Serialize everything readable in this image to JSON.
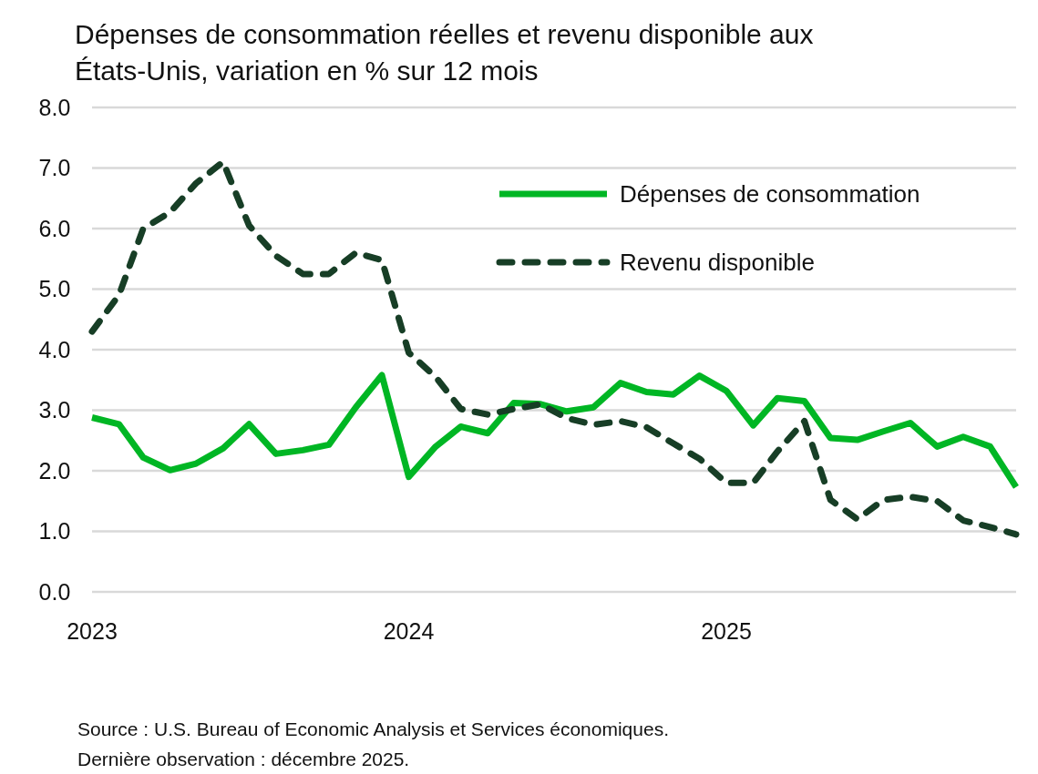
{
  "chart_data": {
    "type": "line",
    "title": "Dépenses de consommation réelles et revenu disponible aux États-Unis, variation en % sur 12 mois",
    "x": [
      "2023-01",
      "2023-02",
      "2023-03",
      "2023-04",
      "2023-05",
      "2023-06",
      "2023-07",
      "2023-08",
      "2023-09",
      "2023-10",
      "2023-11",
      "2023-12",
      "2024-01",
      "2024-02",
      "2024-03",
      "2024-04",
      "2024-05",
      "2024-06",
      "2024-07",
      "2024-08",
      "2024-09",
      "2024-10",
      "2024-11",
      "2024-12",
      "2025-01",
      "2025-02",
      "2025-03",
      "2025-04",
      "2025-05",
      "2025-06",
      "2025-07",
      "2025-08",
      "2025-09",
      "2025-10",
      "2025-11",
      "2025-12"
    ],
    "series": [
      {
        "name": "Dépenses de consommation",
        "color": "#00b624",
        "line_style": "solid",
        "values": [
          2.88,
          2.77,
          2.22,
          2.01,
          2.12,
          2.37,
          2.77,
          2.28,
          2.34,
          2.43,
          3.05,
          3.58,
          1.9,
          2.4,
          2.73,
          2.62,
          3.12,
          3.1,
          2.98,
          3.05,
          3.45,
          3.3,
          3.26,
          3.57,
          3.32,
          2.75,
          3.2,
          3.15,
          2.54,
          2.51,
          2.65,
          2.79,
          2.4,
          2.56,
          2.4,
          1.73
        ]
      },
      {
        "name": "Revenu disponible",
        "color": "#173e26",
        "line_style": "dashed",
        "values": [
          4.3,
          4.9,
          6.0,
          6.27,
          6.75,
          7.1,
          6.05,
          5.55,
          5.25,
          5.25,
          5.6,
          5.48,
          3.95,
          3.55,
          3.02,
          2.93,
          3.02,
          3.1,
          2.87,
          2.76,
          2.82,
          2.72,
          2.45,
          2.2,
          1.8,
          1.8,
          2.32,
          2.82,
          1.52,
          1.2,
          1.52,
          1.57,
          1.5,
          1.18,
          1.07,
          0.95
        ]
      }
    ],
    "xlim": [
      "2023-01",
      "2025-12"
    ],
    "xticks": [
      "2023",
      "2024",
      "2025"
    ],
    "ylim": [
      0,
      8
    ],
    "yticks": [
      {
        "value": 0,
        "label": "0.0"
      },
      {
        "value": 1,
        "label": "1.0"
      },
      {
        "value": 2,
        "label": "2.0"
      },
      {
        "value": 3,
        "label": "3.0"
      },
      {
        "value": 4,
        "label": "4.0"
      },
      {
        "value": 5,
        "label": "5.0"
      },
      {
        "value": 6,
        "label": "6.0"
      },
      {
        "value": 7,
        "label": "7.0"
      },
      {
        "value": 8,
        "label": "8.0"
      }
    ],
    "grid": "y",
    "legend": "top right",
    "marker": "none",
    "annotations": [
      "Source : U.S. Bureau of Economic Analysis et Services économiques.",
      "Dernière observation : décembre 2025."
    ]
  }
}
